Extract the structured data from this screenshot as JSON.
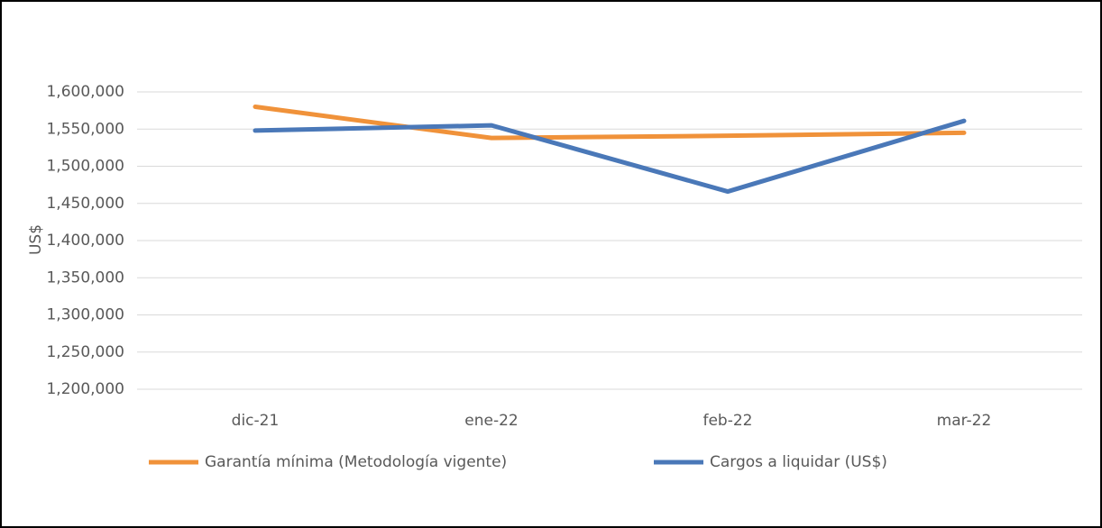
{
  "chart_data": {
    "type": "line",
    "y_label": "US$",
    "categories": [
      "dic-21",
      "ene-22",
      "feb-22",
      "mar-22"
    ],
    "series": [
      {
        "name": "Garantía mínima (Metodología vigente)",
        "color": "#f0923a",
        "values": [
          1580000,
          1538000,
          1541000,
          1545000
        ]
      },
      {
        "name": "Cargos a liquidar (US$)",
        "color": "#4a78b8",
        "values": [
          1548000,
          1555000,
          1466000,
          1561000
        ]
      }
    ],
    "ylim": [
      1200000,
      1600000
    ],
    "yticks": [
      {
        "value": 1200000,
        "label": "1,200,000"
      },
      {
        "value": 1250000,
        "label": "1,250,000"
      },
      {
        "value": 1300000,
        "label": "1,300,000"
      },
      {
        "value": 1350000,
        "label": "1,350,000"
      },
      {
        "value": 1400000,
        "label": "1,400,000"
      },
      {
        "value": 1450000,
        "label": "1,450,000"
      },
      {
        "value": 1500000,
        "label": "1,500,000"
      },
      {
        "value": 1550000,
        "label": "1,550,000"
      },
      {
        "value": 1600000,
        "label": "1,600,000"
      }
    ],
    "grid": true,
    "legend": "bottom"
  }
}
